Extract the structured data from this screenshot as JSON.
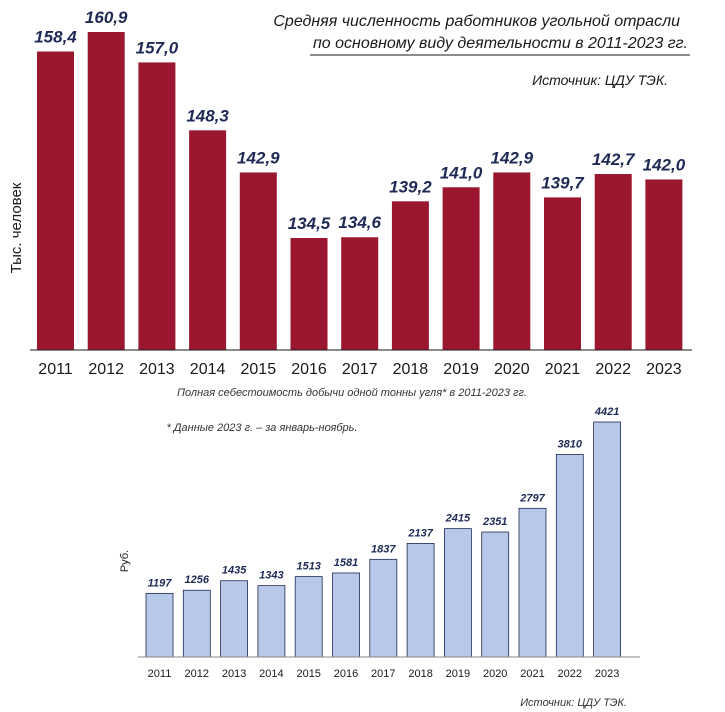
{
  "chart_data": [
    {
      "type": "bar",
      "title_lines": [
        "Средняя численность работников угольной отрасли",
        "по основному виду деятельности в 2011-2023 гг."
      ],
      "source": "Источник: ЦДУ ТЭК.",
      "ylabel": "Тыс. человек",
      "categories": [
        "2011",
        "2012",
        "2013",
        "2014",
        "2015",
        "2016",
        "2017",
        "2018",
        "2019",
        "2020",
        "2021",
        "2022",
        "2023"
      ],
      "values": [
        158.4,
        160.9,
        157.0,
        148.3,
        142.9,
        134.5,
        134.6,
        139.2,
        141.0,
        142.9,
        139.7,
        142.7,
        142.0
      ],
      "value_labels": [
        "158,4",
        "160,9",
        "157,0",
        "148,3",
        "142,9",
        "134,5",
        "134,6",
        "139,2",
        "141,0",
        "142,9",
        "139,7",
        "142,7",
        "142,0"
      ],
      "bar_color": "#9b1730"
    },
    {
      "type": "bar",
      "title": "Полная себестоимость добычи одной тонны угля* в 2011-2023 гг.",
      "footnote": "* Данные 2023 г. – за январь-ноябрь.",
      "source": "Источник: ЦДУ ТЭК.",
      "ylabel": "Руб.",
      "categories": [
        "2011",
        "2012",
        "2013",
        "2014",
        "2015",
        "2016",
        "2017",
        "2018",
        "2019",
        "2020",
        "2021",
        "2022",
        "2023"
      ],
      "values": [
        1197,
        1256,
        1435,
        1343,
        1513,
        1581,
        1837,
        2137,
        2415,
        2351,
        2797,
        3810,
        4421
      ],
      "value_labels": [
        "1197",
        "1256",
        "1435",
        "1343",
        "1513",
        "1581",
        "1837",
        "2137",
        "2415",
        "2351",
        "2797",
        "3810",
        "4421"
      ],
      "bar_color": "#b8c8e8"
    }
  ]
}
